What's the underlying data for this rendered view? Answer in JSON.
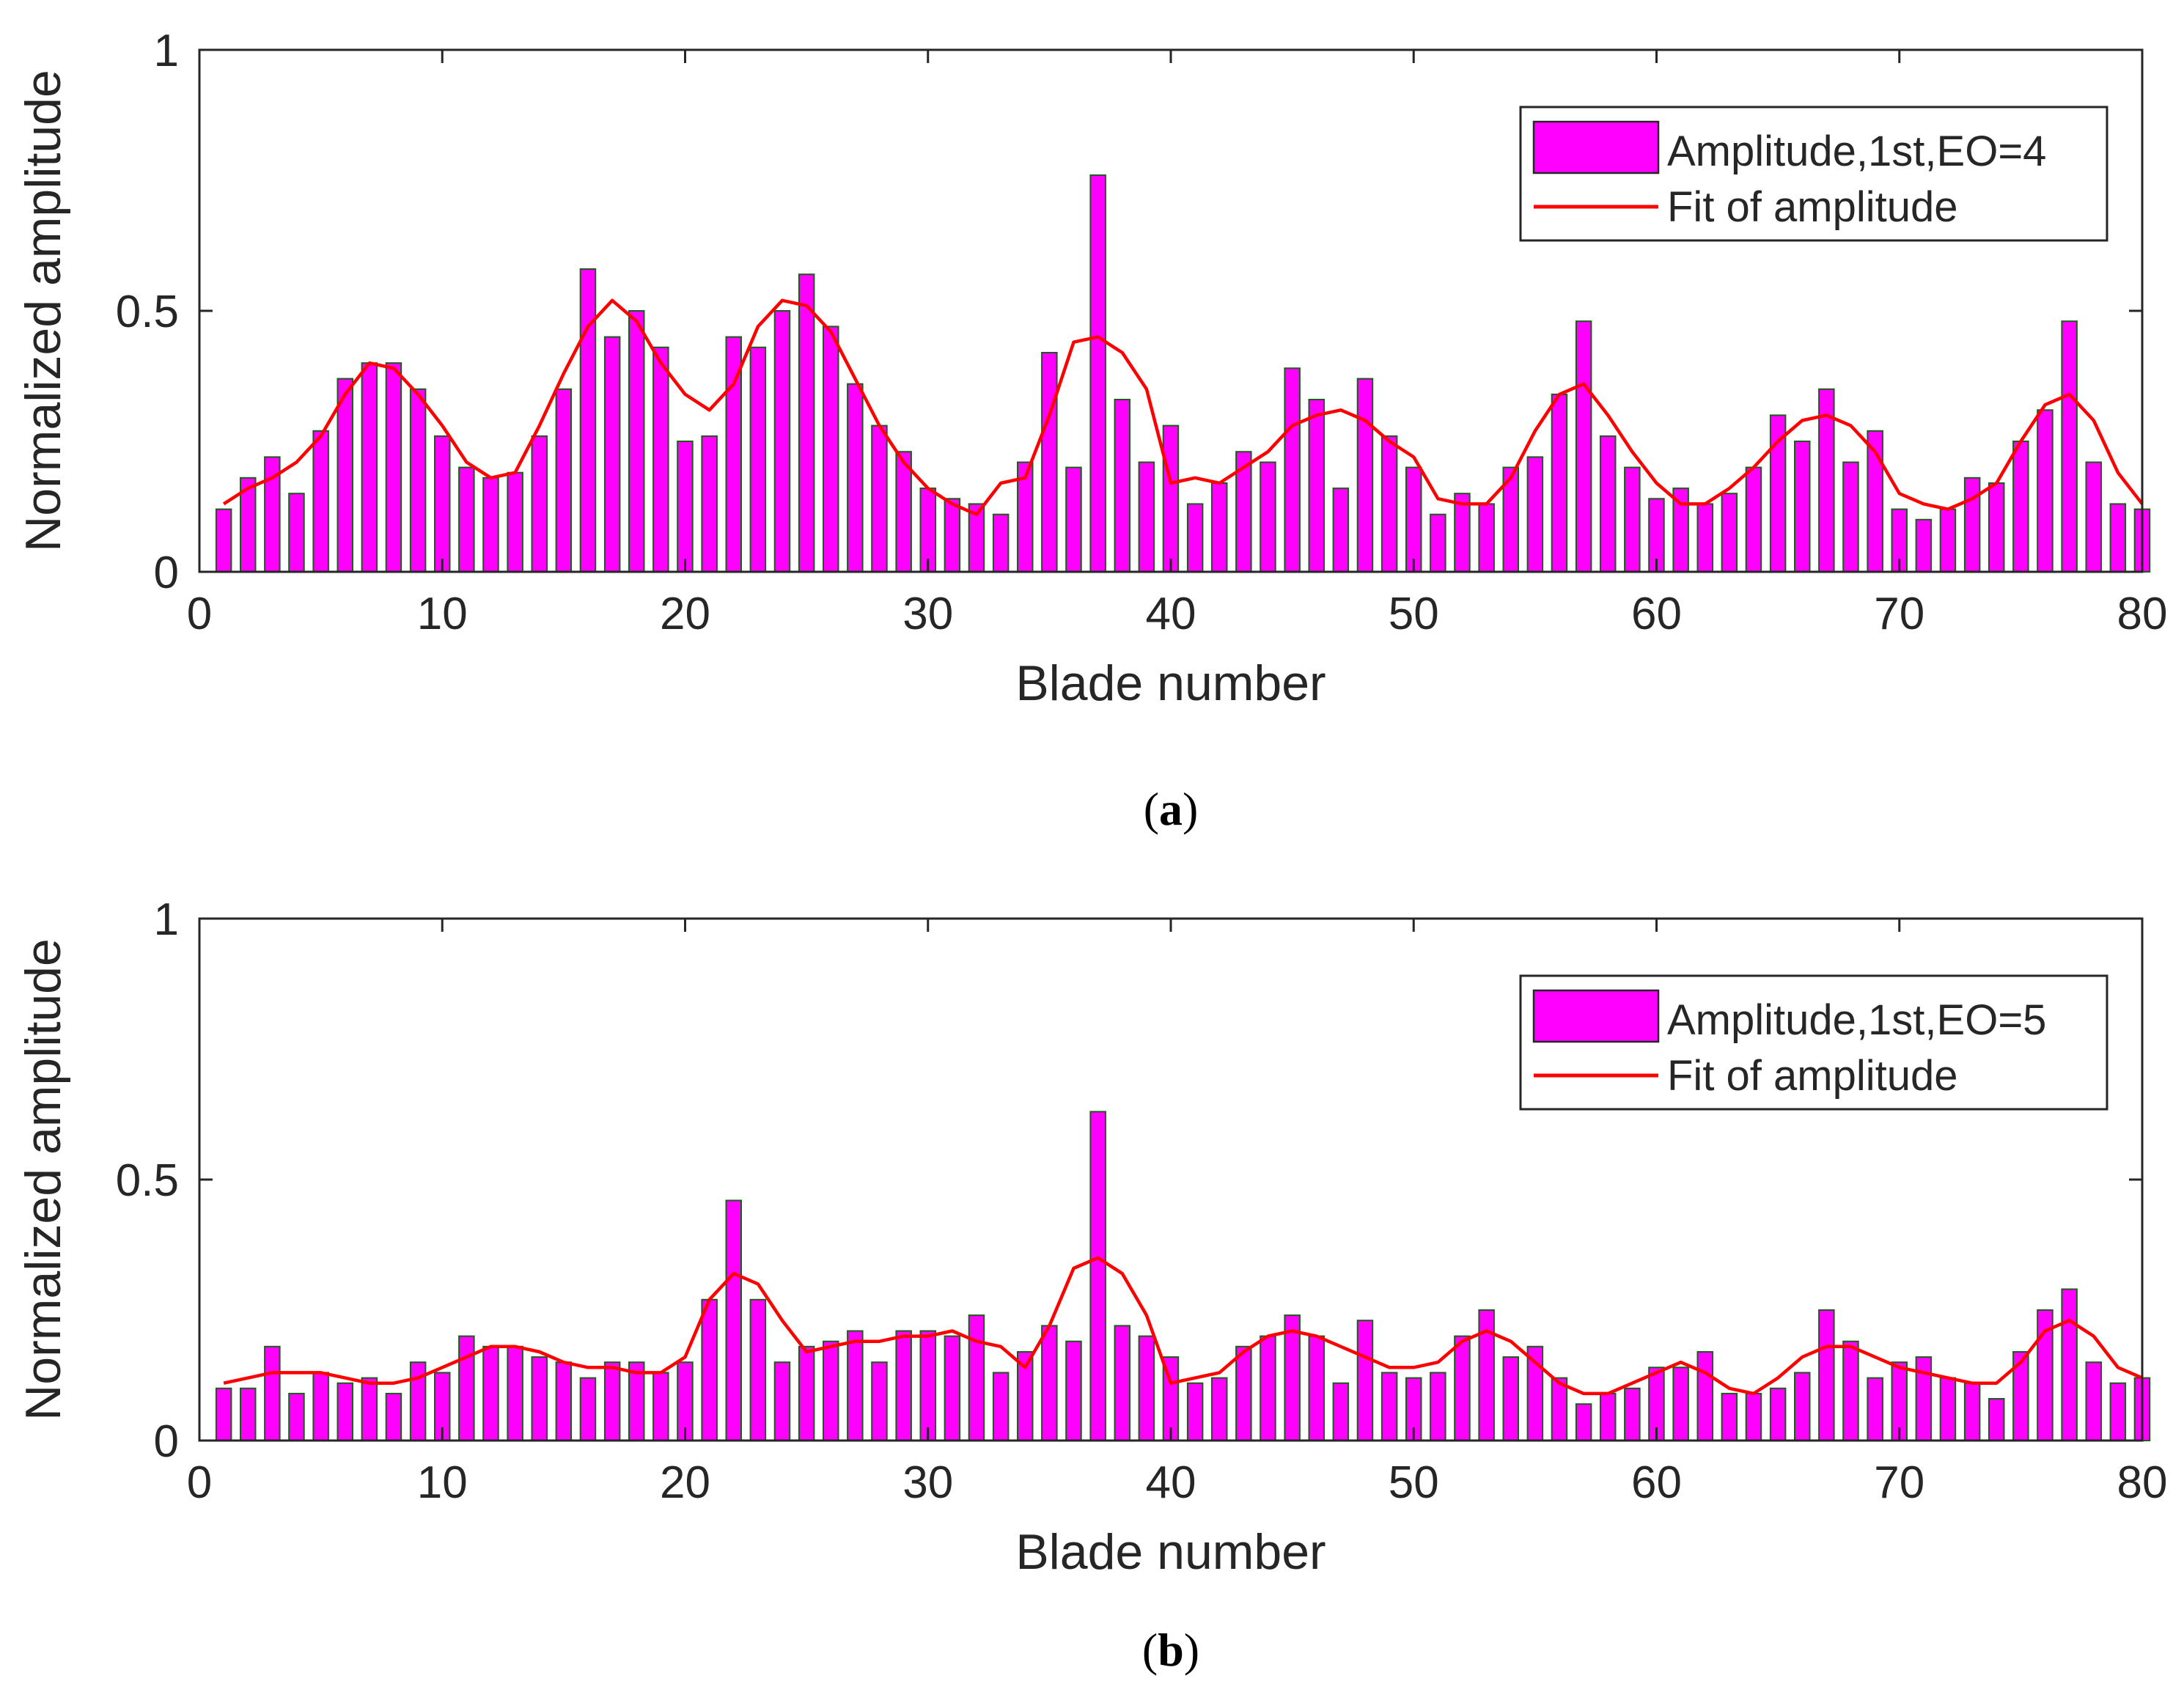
{
  "chart_data": [
    {
      "type": "bar",
      "caption": "(a)",
      "caption_letter": "a",
      "xlabel": "Blade number",
      "ylabel": "Normalized amplitude",
      "xlim": [
        0,
        80
      ],
      "ylim": [
        0,
        1
      ],
      "xticks": [
        0,
        10,
        20,
        30,
        40,
        50,
        60,
        70,
        80
      ],
      "yticks": [
        0,
        0.5,
        1
      ],
      "ytick_labels": [
        "0",
        "0.5",
        "1"
      ],
      "legend_position": "top-right",
      "x": [
        1,
        2,
        3,
        4,
        5,
        6,
        7,
        8,
        9,
        10,
        11,
        12,
        13,
        14,
        15,
        16,
        17,
        18,
        19,
        20,
        21,
        22,
        23,
        24,
        25,
        26,
        27,
        28,
        29,
        30,
        31,
        32,
        33,
        34,
        35,
        36,
        37,
        38,
        39,
        40,
        41,
        42,
        43,
        44,
        45,
        46,
        47,
        48,
        49,
        50,
        51,
        52,
        53,
        54,
        55,
        56,
        57,
        58,
        59,
        60,
        61,
        62,
        63,
        64,
        65,
        66,
        67,
        68,
        69,
        70,
        71,
        72,
        73,
        74,
        75,
        76,
        77,
        78,
        79,
        80
      ],
      "series": [
        {
          "name": "Amplitude,1st,EO=4",
          "kind": "bar",
          "color": "#ff00ff",
          "edge_color": "#1a5c1a",
          "values": [
            0.12,
            0.18,
            0.22,
            0.15,
            0.27,
            0.37,
            0.4,
            0.4,
            0.35,
            0.26,
            0.2,
            0.18,
            0.19,
            0.26,
            0.35,
            0.58,
            0.45,
            0.5,
            0.43,
            0.25,
            0.26,
            0.45,
            0.43,
            0.5,
            0.57,
            0.47,
            0.36,
            0.28,
            0.23,
            0.16,
            0.14,
            0.13,
            0.11,
            0.21,
            0.42,
            0.2,
            0.76,
            0.33,
            0.21,
            0.28,
            0.13,
            0.17,
            0.23,
            0.21,
            0.39,
            0.33,
            0.16,
            0.37,
            0.26,
            0.2,
            0.11,
            0.15,
            0.13,
            0.2,
            0.22,
            0.34,
            0.48,
            0.26,
            0.2,
            0.14,
            0.16,
            0.13,
            0.15,
            0.2,
            0.3,
            0.25,
            0.35,
            0.21,
            0.27,
            0.12,
            0.1,
            0.12,
            0.18,
            0.17,
            0.25,
            0.31,
            0.48,
            0.21,
            0.13,
            0.12
          ]
        },
        {
          "name": "Fit of amplitude",
          "kind": "line",
          "color": "#ff0000",
          "values": [
            0.13,
            0.16,
            0.18,
            0.21,
            0.26,
            0.34,
            0.4,
            0.39,
            0.34,
            0.28,
            0.21,
            0.18,
            0.19,
            0.28,
            0.38,
            0.47,
            0.52,
            0.48,
            0.4,
            0.34,
            0.31,
            0.36,
            0.47,
            0.52,
            0.51,
            0.46,
            0.37,
            0.28,
            0.21,
            0.16,
            0.13,
            0.11,
            0.17,
            0.18,
            0.3,
            0.44,
            0.45,
            0.42,
            0.35,
            0.17,
            0.18,
            0.17,
            0.2,
            0.23,
            0.28,
            0.3,
            0.31,
            0.29,
            0.25,
            0.22,
            0.14,
            0.13,
            0.13,
            0.18,
            0.27,
            0.34,
            0.36,
            0.3,
            0.23,
            0.17,
            0.13,
            0.13,
            0.16,
            0.2,
            0.25,
            0.29,
            0.3,
            0.28,
            0.23,
            0.15,
            0.13,
            0.12,
            0.14,
            0.17,
            0.25,
            0.32,
            0.34,
            0.29,
            0.19,
            0.13
          ]
        }
      ]
    },
    {
      "type": "bar",
      "caption": "(b)",
      "caption_letter": "b",
      "xlabel": "Blade number",
      "ylabel": "Normalized amplitude",
      "xlim": [
        0,
        80
      ],
      "ylim": [
        0,
        1
      ],
      "xticks": [
        0,
        10,
        20,
        30,
        40,
        50,
        60,
        70,
        80
      ],
      "yticks": [
        0,
        0.5,
        1
      ],
      "ytick_labels": [
        "0",
        "0.5",
        "1"
      ],
      "legend_position": "top-right",
      "x": [
        1,
        2,
        3,
        4,
        5,
        6,
        7,
        8,
        9,
        10,
        11,
        12,
        13,
        14,
        15,
        16,
        17,
        18,
        19,
        20,
        21,
        22,
        23,
        24,
        25,
        26,
        27,
        28,
        29,
        30,
        31,
        32,
        33,
        34,
        35,
        36,
        37,
        38,
        39,
        40,
        41,
        42,
        43,
        44,
        45,
        46,
        47,
        48,
        49,
        50,
        51,
        52,
        53,
        54,
        55,
        56,
        57,
        58,
        59,
        60,
        61,
        62,
        63,
        64,
        65,
        66,
        67,
        68,
        69,
        70,
        71,
        72,
        73,
        74,
        75,
        76,
        77,
        78,
        79,
        80
      ],
      "series": [
        {
          "name": "Amplitude,1st,EO=5",
          "kind": "bar",
          "color": "#ff00ff",
          "edge_color": "#1a5c1a",
          "values": [
            0.1,
            0.1,
            0.18,
            0.09,
            0.13,
            0.11,
            0.12,
            0.09,
            0.15,
            0.13,
            0.2,
            0.18,
            0.18,
            0.16,
            0.15,
            0.12,
            0.15,
            0.15,
            0.13,
            0.15,
            0.27,
            0.46,
            0.27,
            0.15,
            0.18,
            0.19,
            0.21,
            0.15,
            0.21,
            0.21,
            0.2,
            0.24,
            0.13,
            0.17,
            0.22,
            0.19,
            0.63,
            0.22,
            0.2,
            0.16,
            0.11,
            0.12,
            0.18,
            0.2,
            0.24,
            0.2,
            0.11,
            0.23,
            0.13,
            0.12,
            0.13,
            0.2,
            0.25,
            0.16,
            0.18,
            0.12,
            0.07,
            0.09,
            0.1,
            0.14,
            0.14,
            0.17,
            0.09,
            0.09,
            0.1,
            0.13,
            0.25,
            0.19,
            0.12,
            0.15,
            0.16,
            0.12,
            0.11,
            0.08,
            0.17,
            0.25,
            0.29,
            0.15,
            0.11,
            0.12
          ]
        },
        {
          "name": "Fit of amplitude",
          "kind": "line",
          "color": "#ff0000",
          "values": [
            0.11,
            0.12,
            0.13,
            0.13,
            0.13,
            0.12,
            0.11,
            0.11,
            0.12,
            0.14,
            0.16,
            0.18,
            0.18,
            0.17,
            0.15,
            0.14,
            0.14,
            0.13,
            0.13,
            0.16,
            0.27,
            0.32,
            0.3,
            0.23,
            0.17,
            0.18,
            0.19,
            0.19,
            0.2,
            0.2,
            0.21,
            0.19,
            0.18,
            0.14,
            0.22,
            0.33,
            0.35,
            0.32,
            0.24,
            0.11,
            0.12,
            0.13,
            0.17,
            0.2,
            0.21,
            0.2,
            0.18,
            0.16,
            0.14,
            0.14,
            0.15,
            0.19,
            0.21,
            0.19,
            0.15,
            0.11,
            0.09,
            0.09,
            0.11,
            0.13,
            0.15,
            0.13,
            0.1,
            0.09,
            0.12,
            0.16,
            0.18,
            0.18,
            0.16,
            0.14,
            0.13,
            0.12,
            0.11,
            0.11,
            0.15,
            0.21,
            0.23,
            0.2,
            0.14,
            0.12
          ]
        }
      ]
    }
  ]
}
